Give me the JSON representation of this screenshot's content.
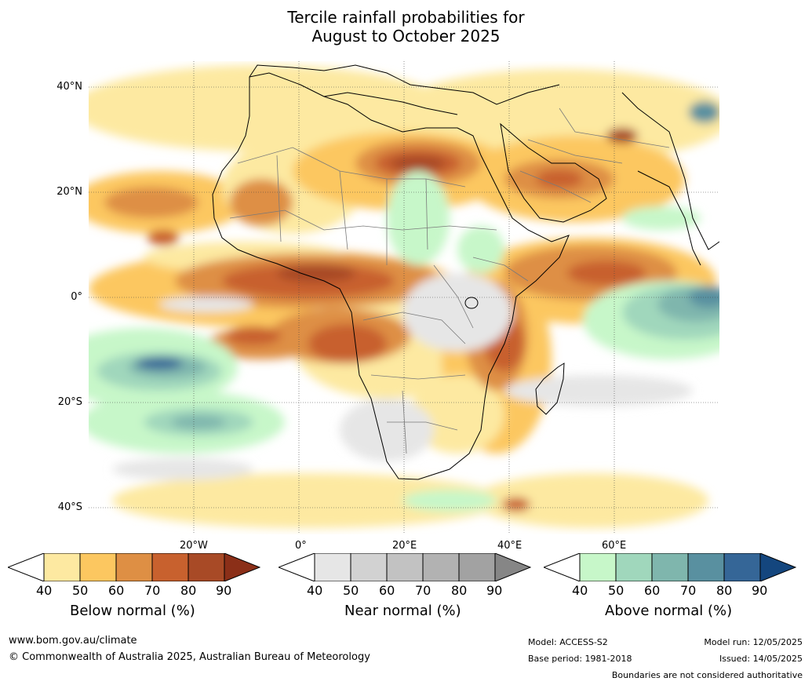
{
  "title": {
    "line1": "Tercile rainfall probabilities for",
    "line2": "August to October 2025"
  },
  "lat_labels": [
    "40°N",
    "20°N",
    "0°",
    "20°S",
    "40°S"
  ],
  "lon_labels": [
    "20°W",
    "0°",
    "20°E",
    "40°E",
    "60°E"
  ],
  "colorbars": [
    {
      "label": "Below normal (%)",
      "ticks": [
        "40",
        "50",
        "60",
        "70",
        "80",
        "90"
      ],
      "colors": [
        "#ffffff",
        "#fde9a1",
        "#fcc760",
        "#de8f44",
        "#c8612e",
        "#a84a26",
        "#8b2f18"
      ]
    },
    {
      "label": "Near normal (%)",
      "ticks": [
        "40",
        "50",
        "60",
        "70",
        "80",
        "90"
      ],
      "colors": [
        "#ffffff",
        "#e6e6e6",
        "#d2d2d2",
        "#c2c2c2",
        "#b2b2b2",
        "#a2a2a2",
        "#868686"
      ]
    },
    {
      "label": "Above normal (%)",
      "ticks": [
        "40",
        "50",
        "60",
        "70",
        "80",
        "90"
      ],
      "colors": [
        "#ffffff",
        "#c7f7c9",
        "#a0d7bc",
        "#7fb6ad",
        "#5990a0",
        "#356697",
        "#14467e"
      ]
    }
  ],
  "footer": {
    "website": "www.bom.gov.au/climate",
    "copyright": "© Commonwealth of Australia 2025, Australian Bureau of Meteorology",
    "model": "Model: ACCESS-S2",
    "base_period": "Base period: 1981-2018",
    "model_run": "Model run: 12/05/2025",
    "issued": "Issued: 14/05/2025",
    "disclaimer": "Boundaries are not considered authoritative"
  }
}
